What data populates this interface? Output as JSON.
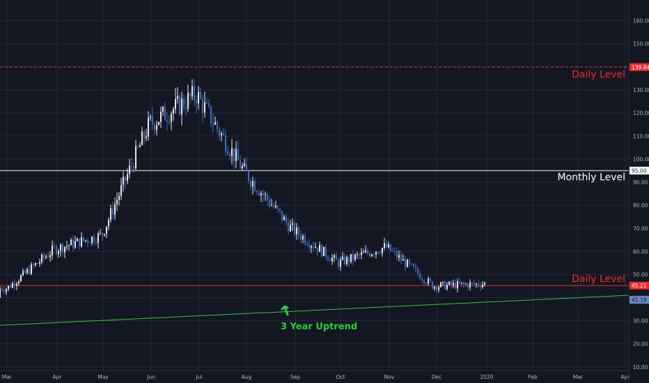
{
  "theme": {
    "background": "#131722",
    "grid": "#242a38",
    "candle_up": "#e8e8e8",
    "candle_down": "#3d6dbf",
    "axis_text": "#b2b5be"
  },
  "chart_data": {
    "type": "candlestick",
    "title": "",
    "xlabel": "",
    "ylabel": "",
    "ylim": [
      5,
      163
    ],
    "y_ticks": [
      "10.00",
      "20.00",
      "30.00",
      "40.00",
      "50.00",
      "60.00",
      "70.00",
      "80.00",
      "90.00",
      "100.00",
      "110.00",
      "120.00",
      "130.00",
      "140.00",
      "150.00",
      "160.00"
    ],
    "x_ticks": [
      "Mar",
      "Apr",
      "May",
      "Jun",
      "Jul",
      "Aug",
      "Sep",
      "Oct",
      "Nov",
      "Dec",
      "2020",
      "Feb",
      "Mar",
      "Apr"
    ],
    "grid": true,
    "series": [
      {
        "name": "",
        "kind": "candles",
        "x": [
          "Mar",
          "Apr",
          "May",
          "Jun",
          "Jul",
          "Aug",
          "Sep",
          "Oct",
          "Nov",
          "Dec",
          "2020"
        ],
        "values": [
          44,
          61,
          67,
          115,
          128,
          95,
          70,
          55,
          62,
          45,
          46
        ]
      }
    ],
    "lines": [
      {
        "label": "Daily Level",
        "price": 139.84,
        "price_label": "139.84",
        "color": "#ef2b2b",
        "style": "dashed"
      },
      {
        "label": "Monthly Level",
        "price": 95.0,
        "price_label": "95.00",
        "color": "#ffffff",
        "style": "solid"
      },
      {
        "label": "Daily Level",
        "price": 45.21,
        "price_label": "45.21",
        "color": "#ef2b2b",
        "style": "solid"
      }
    ],
    "trendline": {
      "label": "3 Year Uptrend",
      "color": "#2ecc40",
      "start_price": 28.0,
      "end_price": 41.0,
      "price_label": "45.18",
      "label_color": "#6a8cc7"
    }
  }
}
